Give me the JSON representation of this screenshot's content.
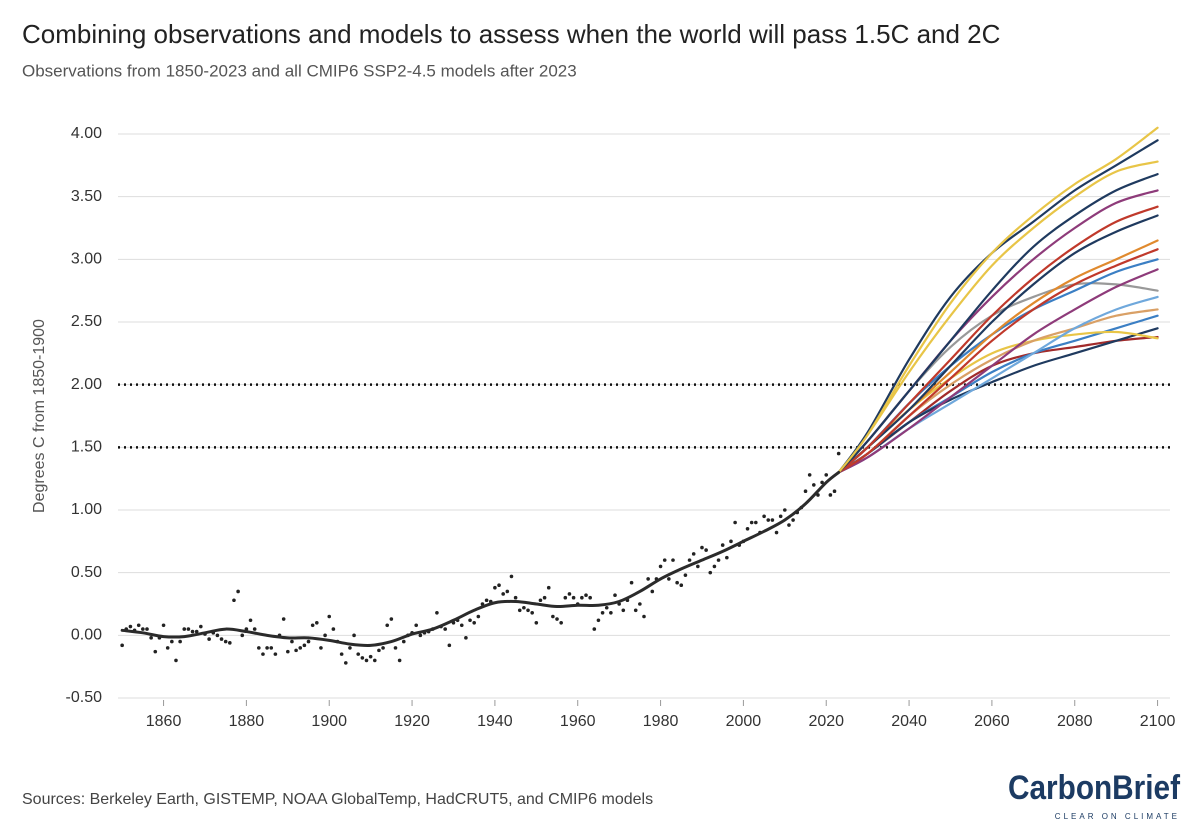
{
  "chart_data": {
    "type": "line",
    "title": "Combining observations and models to assess when the world will pass 1.5C and 2C",
    "subtitle": "Observations from 1850-2023 and all CMIP6 SSP2-4.5 models after 2023",
    "y_label": "Degrees C from 1850-1900",
    "xlim": [
      1849,
      2103
    ],
    "xticks": [
      1860,
      1880,
      1900,
      1920,
      1940,
      1960,
      1980,
      2000,
      2020,
      2040,
      2060,
      2080,
      2100
    ],
    "ylim": [
      -0.5,
      4.0
    ],
    "yticks": [
      {
        "value": -0.5,
        "label": "-0.50"
      },
      {
        "value": 0,
        "label": "0.00"
      },
      {
        "value": 0.5,
        "label": "0.50"
      },
      {
        "value": 1,
        "label": "1.00"
      },
      {
        "value": 1.5,
        "label": "1.50"
      },
      {
        "value": 2,
        "label": "2.00"
      },
      {
        "value": 2.5,
        "label": "2.50"
      },
      {
        "value": 3,
        "label": "3.00"
      },
      {
        "value": 3.5,
        "label": "3.50"
      },
      {
        "value": 4,
        "label": "4.00"
      }
    ],
    "grid": true,
    "reference_lines": [
      1.5,
      2.0
    ],
    "series": [
      {
        "type": "scatter",
        "color": "#222222",
        "x": [
          1850,
          1851,
          1852,
          1853,
          1854,
          1855,
          1856,
          1857,
          1858,
          1859,
          1860,
          1861,
          1862,
          1863,
          1864,
          1865,
          1866,
          1867,
          1868,
          1869,
          1870,
          1871,
          1872,
          1873,
          1874,
          1875,
          1876,
          1877,
          1878,
          1879,
          1880,
          1881,
          1882,
          1883,
          1884,
          1885,
          1886,
          1887,
          1888,
          1889,
          1890,
          1891,
          1892,
          1893,
          1894,
          1895,
          1896,
          1897,
          1898,
          1899,
          1900,
          1901,
          1902,
          1903,
          1904,
          1905,
          1906,
          1907,
          1908,
          1909,
          1910,
          1911,
          1912,
          1913,
          1914,
          1915,
          1916,
          1917,
          1918,
          1919,
          1920,
          1921,
          1922,
          1923,
          1924,
          1925,
          1926,
          1927,
          1928,
          1929,
          1930,
          1931,
          1932,
          1933,
          1934,
          1935,
          1936,
          1937,
          1938,
          1939,
          1940,
          1941,
          1942,
          1943,
          1944,
          1945,
          1946,
          1947,
          1948,
          1949,
          1950,
          1951,
          1952,
          1953,
          1954,
          1955,
          1956,
          1957,
          1958,
          1959,
          1960,
          1961,
          1962,
          1963,
          1964,
          1965,
          1966,
          1967,
          1968,
          1969,
          1970,
          1971,
          1972,
          1973,
          1974,
          1975,
          1976,
          1977,
          1978,
          1979,
          1980,
          1981,
          1982,
          1983,
          1984,
          1985,
          1986,
          1987,
          1988,
          1989,
          1990,
          1991,
          1992,
          1993,
          1994,
          1995,
          1996,
          1997,
          1998,
          1999,
          2000,
          2001,
          2002,
          2003,
          2004,
          2005,
          2006,
          2007,
          2008,
          2009,
          2010,
          2011,
          2012,
          2013,
          2014,
          2015,
          2016,
          2017,
          2018,
          2019,
          2020,
          2021,
          2022,
          2023
        ],
        "values": [
          -0.08,
          0.05,
          0.07,
          0.04,
          0.08,
          0.05,
          0.05,
          -0.02,
          -0.13,
          -0.02,
          0.08,
          -0.1,
          -0.05,
          -0.2,
          -0.05,
          0.05,
          0.05,
          0.03,
          0.03,
          0.07,
          0.01,
          -0.03,
          0.02,
          0.0,
          -0.03,
          -0.05,
          -0.06,
          0.28,
          0.35,
          0.0,
          0.05,
          0.12,
          0.05,
          -0.1,
          -0.15,
          -0.1,
          -0.1,
          -0.15,
          0.0,
          0.13,
          -0.13,
          -0.05,
          -0.12,
          -0.1,
          -0.08,
          -0.05,
          0.08,
          0.1,
          -0.1,
          0.0,
          0.15,
          0.05,
          -0.05,
          -0.15,
          -0.22,
          -0.1,
          0.0,
          -0.15,
          -0.18,
          -0.2,
          -0.17,
          -0.2,
          -0.12,
          -0.1,
          0.08,
          0.13,
          -0.1,
          -0.2,
          -0.05,
          0.0,
          0.02,
          0.08,
          0.0,
          0.02,
          0.03,
          0.05,
          0.18,
          0.07,
          0.05,
          -0.08,
          0.1,
          0.12,
          0.08,
          -0.02,
          0.12,
          0.1,
          0.15,
          0.25,
          0.28,
          0.27,
          0.38,
          0.4,
          0.33,
          0.35,
          0.47,
          0.3,
          0.2,
          0.22,
          0.2,
          0.18,
          0.1,
          0.28,
          0.3,
          0.38,
          0.15,
          0.13,
          0.1,
          0.3,
          0.33,
          0.3,
          0.25,
          0.3,
          0.32,
          0.3,
          0.05,
          0.12,
          0.18,
          0.22,
          0.18,
          0.32,
          0.25,
          0.2,
          0.28,
          0.42,
          0.2,
          0.25,
          0.15,
          0.45,
          0.35,
          0.45,
          0.55,
          0.6,
          0.45,
          0.6,
          0.42,
          0.4,
          0.48,
          0.6,
          0.65,
          0.55,
          0.7,
          0.68,
          0.5,
          0.55,
          0.6,
          0.72,
          0.62,
          0.75,
          0.9,
          0.72,
          0.75,
          0.85,
          0.9,
          0.9,
          0.82,
          0.95,
          0.92,
          0.92,
          0.82,
          0.95,
          1.0,
          0.88,
          0.92,
          0.98,
          1.02,
          1.15,
          1.28,
          1.2,
          1.12,
          1.22,
          1.28,
          1.12,
          1.15,
          1.45
        ]
      },
      {
        "type": "line",
        "color": "#2b2b2b",
        "width": 3,
        "x": [
          1850,
          1855,
          1860,
          1865,
          1870,
          1875,
          1880,
          1885,
          1890,
          1895,
          1900,
          1905,
          1910,
          1915,
          1920,
          1925,
          1930,
          1935,
          1940,
          1945,
          1950,
          1955,
          1960,
          1965,
          1970,
          1975,
          1980,
          1985,
          1990,
          1995,
          2000,
          2005,
          2010,
          2015,
          2020,
          2023
        ],
        "values": [
          0.04,
          0.02,
          -0.01,
          -0.01,
          0.02,
          0.05,
          0.03,
          0.0,
          -0.02,
          -0.02,
          -0.04,
          -0.07,
          -0.08,
          -0.05,
          0.01,
          0.05,
          0.12,
          0.2,
          0.26,
          0.27,
          0.25,
          0.23,
          0.24,
          0.24,
          0.27,
          0.35,
          0.45,
          0.53,
          0.6,
          0.67,
          0.75,
          0.83,
          0.92,
          1.05,
          1.22,
          1.3
        ]
      },
      {
        "type": "line",
        "color": "#a12b2b",
        "x": [
          2023,
          2030,
          2040,
          2050,
          2060,
          2070,
          2080,
          2090,
          2100
        ],
        "values": [
          1.3,
          1.45,
          1.7,
          1.95,
          2.15,
          2.25,
          2.3,
          2.35,
          2.38
        ]
      },
      {
        "type": "line",
        "color": "#3b7fc4",
        "x": [
          2023,
          2030,
          2040,
          2050,
          2060,
          2070,
          2080,
          2090,
          2100
        ],
        "values": [
          1.3,
          1.45,
          1.7,
          1.9,
          2.1,
          2.25,
          2.35,
          2.45,
          2.55
        ]
      },
      {
        "type": "line",
        "color": "#1f3a5f",
        "x": [
          2023,
          2030,
          2040,
          2050,
          2060,
          2070,
          2080,
          2090,
          2100
        ],
        "values": [
          1.3,
          1.45,
          1.7,
          1.88,
          2.02,
          2.15,
          2.25,
          2.35,
          2.45
        ]
      },
      {
        "type": "line",
        "color": "#e8c547",
        "x": [
          2023,
          2030,
          2040,
          2050,
          2060,
          2070,
          2080,
          2090,
          2100
        ],
        "values": [
          1.3,
          1.5,
          1.8,
          2.05,
          2.25,
          2.35,
          2.4,
          2.42,
          2.37
        ]
      },
      {
        "type": "line",
        "color": "#d9a066",
        "x": [
          2023,
          2030,
          2040,
          2050,
          2060,
          2070,
          2080,
          2090,
          2100
        ],
        "values": [
          1.3,
          1.45,
          1.75,
          2.0,
          2.2,
          2.35,
          2.45,
          2.55,
          2.6
        ]
      },
      {
        "type": "line",
        "color": "#6fa8dc",
        "x": [
          2023,
          2030,
          2040,
          2050,
          2060,
          2070,
          2080,
          2090,
          2100
        ],
        "values": [
          1.3,
          1.42,
          1.65,
          1.85,
          2.05,
          2.25,
          2.45,
          2.6,
          2.7
        ]
      },
      {
        "type": "line",
        "color": "#999999",
        "x": [
          2023,
          2030,
          2040,
          2050,
          2060,
          2070,
          2080,
          2090,
          2100
        ],
        "values": [
          1.3,
          1.55,
          1.95,
          2.3,
          2.55,
          2.7,
          2.8,
          2.8,
          2.75
        ]
      },
      {
        "type": "line",
        "color": "#8e3b7a",
        "x": [
          2023,
          2030,
          2040,
          2050,
          2060,
          2070,
          2080,
          2090,
          2100
        ],
        "values": [
          1.3,
          1.42,
          1.65,
          1.9,
          2.15,
          2.4,
          2.6,
          2.78,
          2.92
        ]
      },
      {
        "type": "line",
        "color": "#3b7fc4",
        "x": [
          2023,
          2030,
          2040,
          2050,
          2060,
          2070,
          2080,
          2090,
          2100
        ],
        "values": [
          1.3,
          1.5,
          1.85,
          2.15,
          2.4,
          2.6,
          2.75,
          2.9,
          3.0
        ]
      },
      {
        "type": "line",
        "color": "#c0392b",
        "x": [
          2023,
          2030,
          2040,
          2050,
          2060,
          2070,
          2080,
          2090,
          2100
        ],
        "values": [
          1.3,
          1.45,
          1.75,
          2.05,
          2.35,
          2.6,
          2.8,
          2.95,
          3.08
        ]
      },
      {
        "type": "line",
        "color": "#e08a2e",
        "x": [
          2023,
          2030,
          2040,
          2050,
          2060,
          2070,
          2080,
          2090,
          2100
        ],
        "values": [
          1.3,
          1.5,
          1.8,
          2.1,
          2.4,
          2.65,
          2.85,
          3.0,
          3.15
        ]
      },
      {
        "type": "line",
        "color": "#1f3a5f",
        "x": [
          2023,
          2030,
          2040,
          2050,
          2060,
          2070,
          2080,
          2090,
          2100
        ],
        "values": [
          1.3,
          1.5,
          1.8,
          2.15,
          2.5,
          2.8,
          3.05,
          3.22,
          3.35
        ]
      },
      {
        "type": "line",
        "color": "#c0392b",
        "x": [
          2023,
          2030,
          2040,
          2050,
          2060,
          2070,
          2080,
          2090,
          2100
        ],
        "values": [
          1.3,
          1.5,
          1.85,
          2.2,
          2.55,
          2.85,
          3.1,
          3.3,
          3.42
        ]
      },
      {
        "type": "line",
        "color": "#8e3b7a",
        "x": [
          2023,
          2030,
          2040,
          2050,
          2060,
          2070,
          2080,
          2090,
          2100
        ],
        "values": [
          1.3,
          1.55,
          1.95,
          2.35,
          2.7,
          3.0,
          3.25,
          3.45,
          3.55
        ]
      },
      {
        "type": "line",
        "color": "#1f3a5f",
        "x": [
          2023,
          2030,
          2040,
          2050,
          2060,
          2070,
          2080,
          2090,
          2100
        ],
        "values": [
          1.3,
          1.55,
          1.95,
          2.35,
          2.75,
          3.1,
          3.35,
          3.55,
          3.68
        ]
      },
      {
        "type": "line",
        "color": "#e8c547",
        "x": [
          2023,
          2030,
          2040,
          2050,
          2060,
          2070,
          2080,
          2090,
          2100
        ],
        "values": [
          1.3,
          1.6,
          2.1,
          2.55,
          2.95,
          3.25,
          3.5,
          3.7,
          3.78
        ]
      },
      {
        "type": "line",
        "color": "#1f3a5f",
        "x": [
          2023,
          2030,
          2040,
          2050,
          2060,
          2070,
          2080,
          2090,
          2100
        ],
        "values": [
          1.3,
          1.62,
          2.2,
          2.7,
          3.05,
          3.3,
          3.55,
          3.75,
          3.95
        ]
      },
      {
        "type": "line",
        "color": "#e8c547",
        "x": [
          2023,
          2030,
          2040,
          2050,
          2060,
          2070,
          2080,
          2090,
          2100
        ],
        "values": [
          1.3,
          1.6,
          2.15,
          2.65,
          3.05,
          3.35,
          3.6,
          3.8,
          4.05
        ]
      }
    ]
  },
  "footer": {
    "source": "Sources: Berkeley Earth, GISTEMP, NOAA GlobalTemp, HadCRUT5, and CMIP6 models",
    "logo": "CarbonBrief",
    "tagline": "CLEAR ON CLIMATE"
  }
}
